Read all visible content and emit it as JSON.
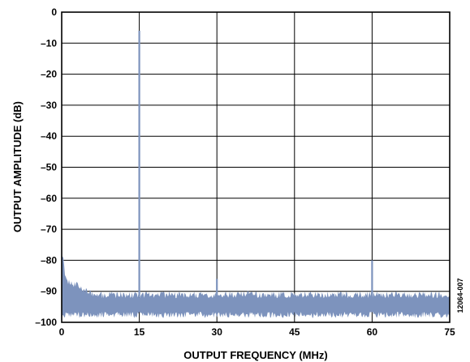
{
  "chart_data": {
    "type": "area",
    "title": "",
    "xlabel": "OUTPUT FREQUENCY (MHz)",
    "ylabel": "OUTPUT AMPLITUDE (dB)",
    "xlim": [
      0,
      75
    ],
    "ylim": [
      -100,
      0
    ],
    "xticks": [
      "0",
      "15",
      "30",
      "45",
      "60",
      "75"
    ],
    "yticks": [
      "0",
      "–10",
      "–20",
      "–30",
      "–40",
      "–50",
      "–60",
      "–70",
      "–80",
      "–90",
      "–100"
    ],
    "grid": true,
    "series_color": "#7d93bd",
    "noise_floor": {
      "upper_db": -91,
      "lower_db": -98,
      "near_dc_upper_db": [
        [
          0.2,
          -78
        ],
        [
          0.5,
          -83
        ],
        [
          1,
          -87
        ],
        [
          3,
          -88
        ],
        [
          6,
          -90.5
        ]
      ]
    },
    "peaks": [
      {
        "x": 15,
        "y": -6
      },
      {
        "x": 30,
        "y": -86
      },
      {
        "x": 36,
        "y": -90
      },
      {
        "x": 60,
        "y": -80
      }
    ],
    "figure_id": "12064-007"
  }
}
